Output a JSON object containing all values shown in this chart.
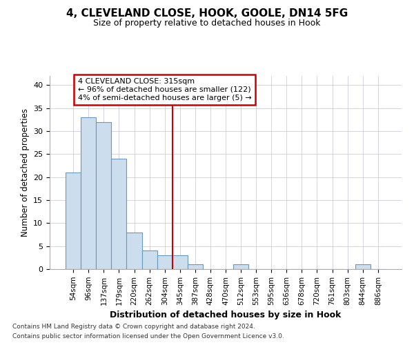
{
  "title": "4, CLEVELAND CLOSE, HOOK, GOOLE, DN14 5FG",
  "subtitle": "Size of property relative to detached houses in Hook",
  "xlabel": "Distribution of detached houses by size in Hook",
  "ylabel": "Number of detached properties",
  "bar_labels": [
    "54sqm",
    "96sqm",
    "137sqm",
    "179sqm",
    "220sqm",
    "262sqm",
    "304sqm",
    "345sqm",
    "387sqm",
    "428sqm",
    "470sqm",
    "512sqm",
    "553sqm",
    "595sqm",
    "636sqm",
    "678sqm",
    "720sqm",
    "761sqm",
    "803sqm",
    "844sqm",
    "886sqm"
  ],
  "bar_values": [
    21,
    33,
    32,
    24,
    8,
    4,
    3,
    3,
    1,
    0,
    0,
    1,
    0,
    0,
    0,
    0,
    0,
    0,
    0,
    1,
    0
  ],
  "bar_color": "#ccdded",
  "bar_edge_color": "#6699bb",
  "vline_x_index": 6.5,
  "vline_color": "#cc0000",
  "annotation_text": "4 CLEVELAND CLOSE: 315sqm\n← 96% of detached houses are smaller (122)\n4% of semi-detached houses are larger (5) →",
  "annotation_box_color": "#ffffff",
  "annotation_box_edge_color": "#cc0000",
  "ylim": [
    0,
    42
  ],
  "yticks": [
    0,
    5,
    10,
    15,
    20,
    25,
    30,
    35,
    40
  ],
  "footer_line1": "Contains HM Land Registry data © Crown copyright and database right 2024.",
  "footer_line2": "Contains public sector information licensed under the Open Government Licence v3.0.",
  "bg_color": "#ffffff",
  "plot_bg_color": "#ffffff",
  "grid_color": "#ccccdd"
}
